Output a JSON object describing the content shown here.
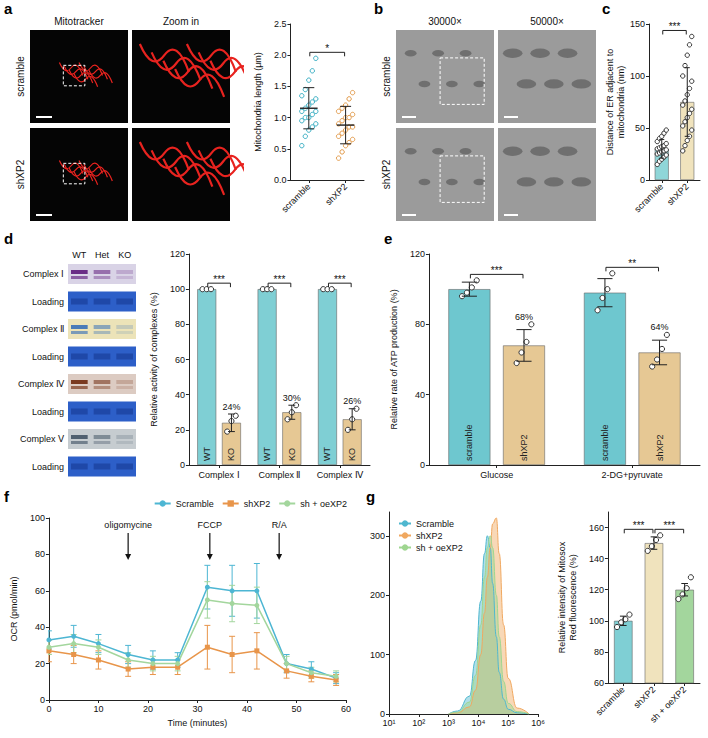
{
  "figure_panels": {
    "a": {
      "letter": "a",
      "column_heads": [
        "Mitotracker",
        "Zoom in"
      ],
      "row_heads": [
        "scramble",
        "shXP2"
      ]
    },
    "b": {
      "letter": "b",
      "column_heads": [
        "30000×",
        "50000×"
      ],
      "row_heads": [
        "scramble",
        "shXP2"
      ]
    },
    "d": {
      "letter": "d",
      "column_heads": [
        "WT",
        "Het",
        "KO"
      ],
      "row_labels": [
        "Complex Ⅰ",
        "Loading",
        "Complex Ⅱ",
        "Loading",
        "Complex Ⅳ",
        "Loading",
        "Complex Ⅴ",
        "Loading"
      ]
    }
  },
  "chart_data": [
    {
      "type": "scatter",
      "y_label": "Mitochondria length (μm)",
      "categories": [
        "scramble",
        "shXP2"
      ],
      "colors": [
        "#3aafc4",
        "#e39b4b"
      ],
      "values": [
        1.15,
        0.88
      ],
      "errors": [
        0.33,
        0.3
      ],
      "points": [
        [
          0.55,
          0.7,
          0.8,
          0.85,
          0.9,
          0.95,
          1.0,
          1.0,
          1.05,
          1.1,
          1.1,
          1.15,
          1.2,
          1.25,
          1.3,
          1.35,
          1.45,
          1.6,
          1.75,
          1.95
        ],
        [
          0.35,
          0.45,
          0.55,
          0.6,
          0.65,
          0.7,
          0.75,
          0.8,
          0.85,
          0.85,
          0.9,
          0.95,
          1.0,
          1.0,
          1.05,
          1.1,
          1.15,
          1.2,
          1.3,
          1.4
        ]
      ],
      "marker": "circle",
      "ylim": [
        0,
        2.5
      ],
      "yticks": [
        {
          "value": 0,
          "label": "0.0"
        },
        0.5,
        {
          "value": 1,
          "label": "1.0"
        },
        1.5,
        {
          "value": 2,
          "label": "2.0"
        },
        2.5
      ],
      "significance": [
        {
          "groups": [
            "scramble",
            "shXP2"
          ],
          "label": "*"
        }
      ]
    },
    {
      "type": "bar",
      "panel": "c",
      "y_label": "Distance of ER adjacent to mitochondria (nm)",
      "categories": [
        "scramble",
        "shXP2"
      ],
      "colors": [
        "#8fd6d8",
        "#f0e3bd"
      ],
      "values": [
        30,
        75
      ],
      "errors": [
        9,
        33
      ],
      "points": [
        [
          15,
          18,
          20,
          22,
          24,
          25,
          26,
          27,
          28,
          29,
          30,
          31,
          32,
          33,
          35,
          37,
          40,
          42,
          45,
          48
        ],
        [
          28,
          33,
          38,
          42,
          48,
          52,
          56,
          60,
          64,
          68,
          72,
          76,
          82,
          88,
          95,
          100,
          110,
          120,
          130,
          138
        ]
      ],
      "marker": "white_circle",
      "ylim": [
        0,
        150
      ],
      "yticks": [
        0,
        50,
        100,
        150
      ],
      "significance": [
        {
          "groups": [
            "scramble",
            "shXP2"
          ],
          "label": "***"
        }
      ]
    },
    {
      "type": "bar",
      "y_label": "Relative activity of complexes (%)",
      "categories": [
        "Complex Ⅰ",
        "Complex Ⅱ",
        "Complex Ⅳ"
      ],
      "series": [
        {
          "name": "WT",
          "color": "#7fcfd4",
          "values": [
            100,
            100,
            100
          ],
          "errors": [
            0,
            0,
            0
          ],
          "points": [
            [
              100,
              100,
              100
            ],
            [
              100,
              100,
              100
            ],
            [
              100,
              100,
              100
            ]
          ]
        },
        {
          "name": "KO",
          "color": "#e6c894",
          "values": [
            24,
            30,
            26
          ],
          "errors": [
            5,
            4,
            6
          ],
          "points": [
            [
              19,
              25,
              28
            ],
            [
              26,
              30,
              34
            ],
            [
              20,
              26,
              32
            ]
          ],
          "value_labels": [
            "24%",
            "30%",
            "26%"
          ]
        }
      ],
      "marker": "white_circle",
      "ylim": [
        0,
        120
      ],
      "yticks": [
        0,
        20,
        40,
        60,
        80,
        100,
        120
      ],
      "significance": [
        {
          "category": "Complex Ⅰ",
          "groups": [
            "WT",
            "KO"
          ],
          "label": "***"
        },
        {
          "category": "Complex Ⅱ",
          "groups": [
            "WT",
            "KO"
          ],
          "label": "***"
        },
        {
          "category": "Complex Ⅳ",
          "groups": [
            "WT",
            "KO"
          ],
          "label": "***"
        }
      ]
    },
    {
      "type": "bar",
      "panel": "e",
      "y_label": "Relative rate of ATP production (%)",
      "categories": [
        "Glucose",
        "2-DG+pyruvate"
      ],
      "series": [
        {
          "name": "scramble",
          "color": "#6ec7cf",
          "values": [
            100,
            98
          ],
          "errors": [
            4,
            8
          ],
          "points": [
            [
              96,
              98,
              101,
              105
            ],
            [
              88,
              95,
              100,
              109
            ]
          ]
        },
        {
          "name": "shXP2",
          "color": "#e6c894",
          "values": [
            68,
            64
          ],
          "errors": [
            9,
            7
          ],
          "points": [
            [
              58,
              64,
              70,
              80
            ],
            [
              56,
              60,
              66,
              74
            ]
          ],
          "value_labels": [
            "68%",
            "64%"
          ]
        }
      ],
      "marker": "white_circle",
      "ylim": [
        0,
        120
      ],
      "yticks": [
        0,
        40,
        80,
        120
      ],
      "significance": [
        {
          "category": "Glucose",
          "groups": [
            "scramble",
            "shXP2"
          ],
          "label": "***"
        },
        {
          "category": "2-DG+pyruvate",
          "groups": [
            "scramble",
            "shXP2"
          ],
          "label": "**"
        }
      ]
    },
    {
      "type": "line",
      "panel": "f",
      "x_label": "Time (minutes)",
      "y_label": "OCR (pmol/min)",
      "x": [
        0,
        5,
        10,
        16,
        21,
        26,
        32,
        37,
        42,
        48,
        53,
        58
      ],
      "series": [
        {
          "name": "Scramble",
          "color": "#4db6d3",
          "marker": "circle",
          "values": [
            33,
            35,
            31,
            25,
            22,
            22,
            62,
            60,
            60,
            20,
            17,
            12
          ],
          "errors": [
            5,
            6,
            5,
            5,
            5,
            4,
            12,
            14,
            15,
            5,
            4,
            3
          ]
        },
        {
          "name": "shXP2",
          "color": "#e8954a",
          "marker": "square",
          "values": [
            27,
            25,
            22,
            17,
            18,
            18,
            29,
            25,
            27,
            16,
            13,
            11
          ],
          "errors": [
            6,
            5,
            5,
            4,
            4,
            4,
            12,
            10,
            10,
            4,
            3,
            3
          ]
        },
        {
          "name": "sh + oeXP2",
          "color": "#a3d69d",
          "marker": "circle",
          "values": [
            29,
            31,
            29,
            22,
            20,
            20,
            55,
            53,
            52,
            20,
            15,
            13
          ],
          "errors": [
            4,
            5,
            4,
            4,
            4,
            4,
            10,
            10,
            10,
            4,
            3,
            3
          ]
        }
      ],
      "xlim": [
        0,
        60
      ],
      "xticks": [
        0,
        10,
        20,
        30,
        40,
        50,
        60
      ],
      "ylim": [
        0,
        100
      ],
      "yticks": [
        0,
        20,
        40,
        60,
        80,
        100
      ],
      "legend": "top-right",
      "annotations": [
        {
          "text": "oligomycine",
          "x": 16
        },
        {
          "text": "FCCP",
          "x": 32.5
        },
        {
          "text": "R/A",
          "x": 46.5
        }
      ]
    },
    {
      "type": "area",
      "panel": "g",
      "log": "x",
      "x": [
        1000,
        2000,
        5000,
        8000,
        12000,
        16000,
        20000,
        25000,
        30000,
        40000,
        50000,
        70000,
        100000,
        200000,
        500000
      ],
      "series": [
        {
          "name": "Scramble",
          "color": "#4fb7cf",
          "values": [
            0,
            5,
            30,
            90,
            190,
            270,
            300,
            280,
            220,
            130,
            70,
            25,
            8,
            2,
            0
          ]
        },
        {
          "name": "shXP2",
          "color": "#f0a860",
          "values": [
            0,
            2,
            12,
            40,
            100,
            170,
            230,
            280,
            320,
            330,
            270,
            150,
            60,
            10,
            0
          ]
        },
        {
          "name": "sh + oeXP2",
          "color": "#9fd690",
          "values": [
            0,
            3,
            20,
            65,
            150,
            230,
            280,
            300,
            280,
            200,
            130,
            55,
            18,
            4,
            0
          ]
        }
      ],
      "xlim": [
        10,
        1000000
      ],
      "xticks": [
        {
          "value": 10,
          "label": "10¹"
        },
        {
          "value": 100,
          "label": "10²"
        },
        {
          "value": 1000,
          "label": "10³"
        },
        {
          "value": 10000,
          "label": "10⁴"
        },
        {
          "value": 100000,
          "label": "10⁵"
        },
        {
          "value": 1000000,
          "label": "10⁶"
        }
      ],
      "ylim": [
        0,
        340
      ],
      "yticks": [
        0,
        100,
        200,
        300
      ],
      "legend": "top-left"
    },
    {
      "type": "bar",
      "y_label": "Relative intensity of Mitosox Red fluorescence (%)",
      "categories": [
        "scramble",
        "shXP2",
        "sh + oeXP2"
      ],
      "colors": [
        "#7fcfd4",
        "#f0e3bd",
        "#a3d69d"
      ],
      "values": [
        100,
        150,
        120
      ],
      "errors": [
        3,
        4,
        4
      ],
      "points": [
        [
          96,
          99,
          101,
          104
        ],
        [
          145,
          148,
          152,
          155
        ],
        [
          114,
          117,
          121,
          128
        ]
      ],
      "marker": "white_circle",
      "ylim": [
        60,
        170
      ],
      "yticks": [
        60,
        80,
        100,
        120,
        140,
        160
      ],
      "significance": [
        {
          "groups": [
            "scramble",
            "shXP2"
          ],
          "label": "***"
        },
        {
          "groups": [
            "shXP2",
            "sh + oeXP2"
          ],
          "label": "***"
        }
      ]
    }
  ]
}
